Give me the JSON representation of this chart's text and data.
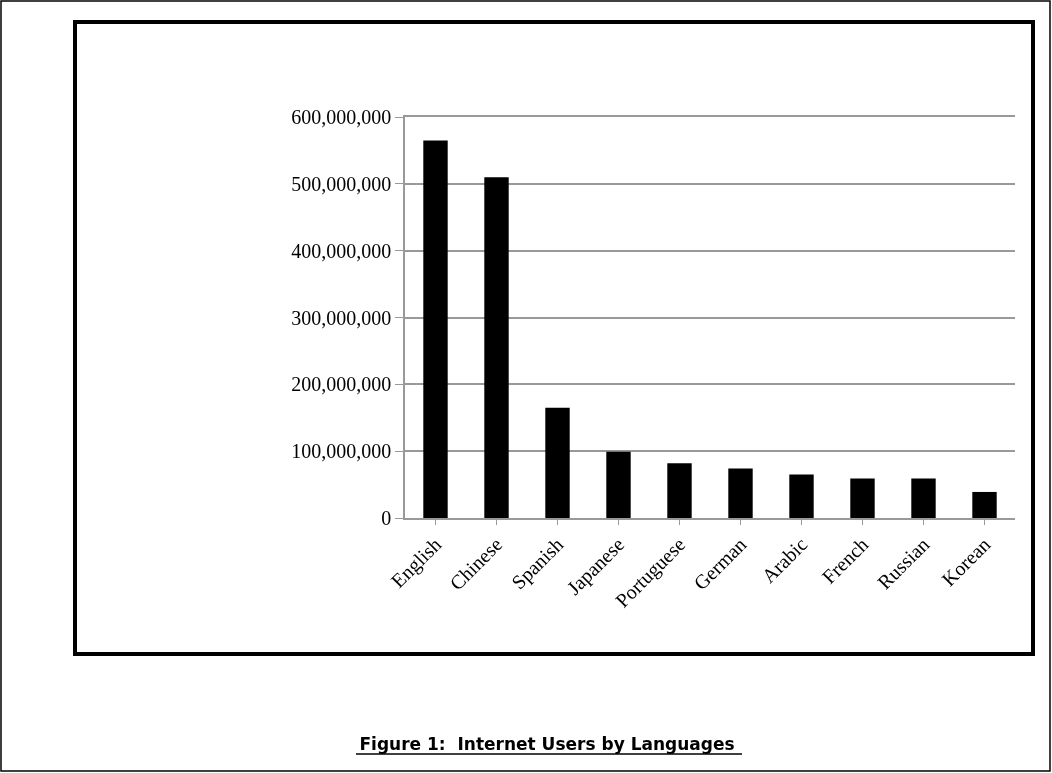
{
  "chart_data": {
    "type": "bar",
    "title": "Figure 1:  Internet Users by Languages",
    "categories": [
      "English",
      "Chinese",
      "Spanish",
      "Japanese",
      "Portuguese",
      "German",
      "Arabic",
      "French",
      "Russian",
      "Korean"
    ],
    "values": [
      565000000,
      510000000,
      165000000,
      99000000,
      82000000,
      74000000,
      65000000,
      59000000,
      59000000,
      39000000
    ],
    "color": "#000000",
    "ylim": [
      0,
      600000000
    ],
    "yticks": [
      {
        "value": 0,
        "label": "0"
      },
      {
        "value": 100000000,
        "label": "100,000,000"
      },
      {
        "value": 200000000,
        "label": "200,000,000"
      },
      {
        "value": 300000000,
        "label": "300,000,000"
      },
      {
        "value": 400000000,
        "label": "400,000,000"
      },
      {
        "value": 500000000,
        "label": "500,000,000"
      },
      {
        "value": 600000000,
        "label": "600,000,000"
      }
    ],
    "grid": "y"
  }
}
